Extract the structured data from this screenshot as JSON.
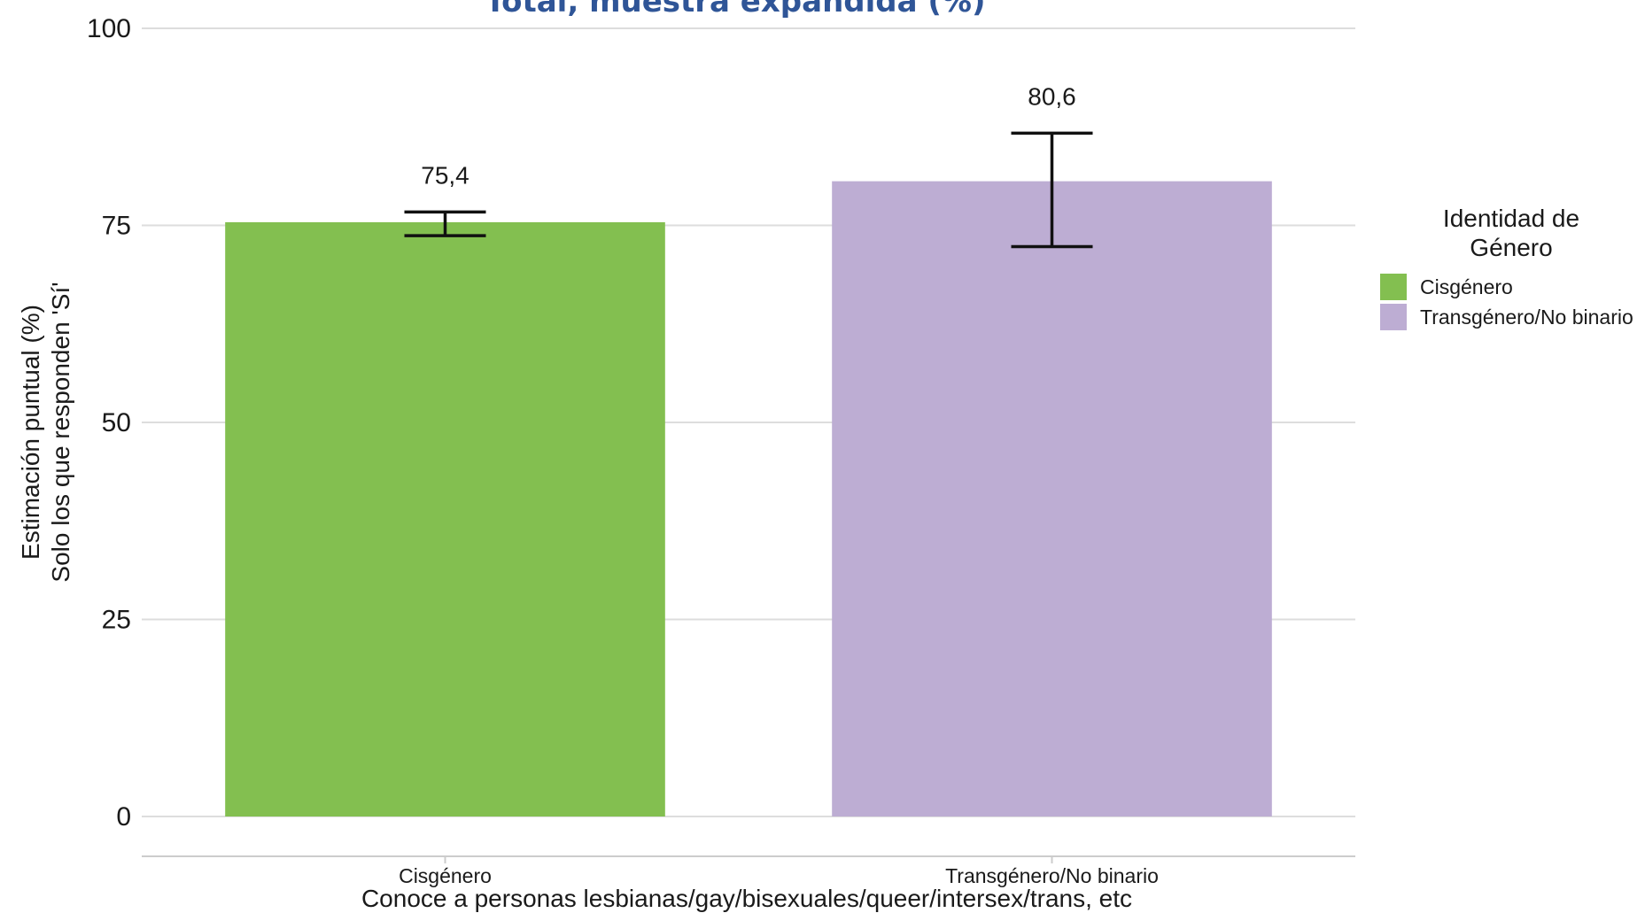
{
  "chart_data": {
    "type": "bar",
    "title": "Total, muestra expandida (%)",
    "title_color": "#2f5597",
    "categories": [
      "Cisgénero",
      "Transgénero/No binario"
    ],
    "values": [
      75.4,
      80.6
    ],
    "value_labels": [
      "75,4",
      "80,6"
    ],
    "error_bars": [
      {
        "low": 73.7,
        "high": 76.7
      },
      {
        "low": 72.3,
        "high": 86.7
      }
    ],
    "colors": [
      "#83bf50",
      "#bdadd3"
    ],
    "xlabel": "Conoce a personas lesbianas/gay/bisexuales/queer/intersex/trans, etc",
    "ylabel_lines": [
      "Estimación puntual (%)",
      "Solo los que responden 'Sí'"
    ],
    "ylim": [
      0,
      100
    ],
    "yticks": [
      0,
      25,
      50,
      75,
      100
    ],
    "grid": true,
    "legend": {
      "position": "right",
      "title_lines": [
        "Identidad de",
        "Género"
      ],
      "entries": [
        {
          "label": "Cisgénero",
          "color": "#83bf50"
        },
        {
          "label": "Transgénero/No binario",
          "color": "#bdadd3"
        }
      ]
    }
  }
}
